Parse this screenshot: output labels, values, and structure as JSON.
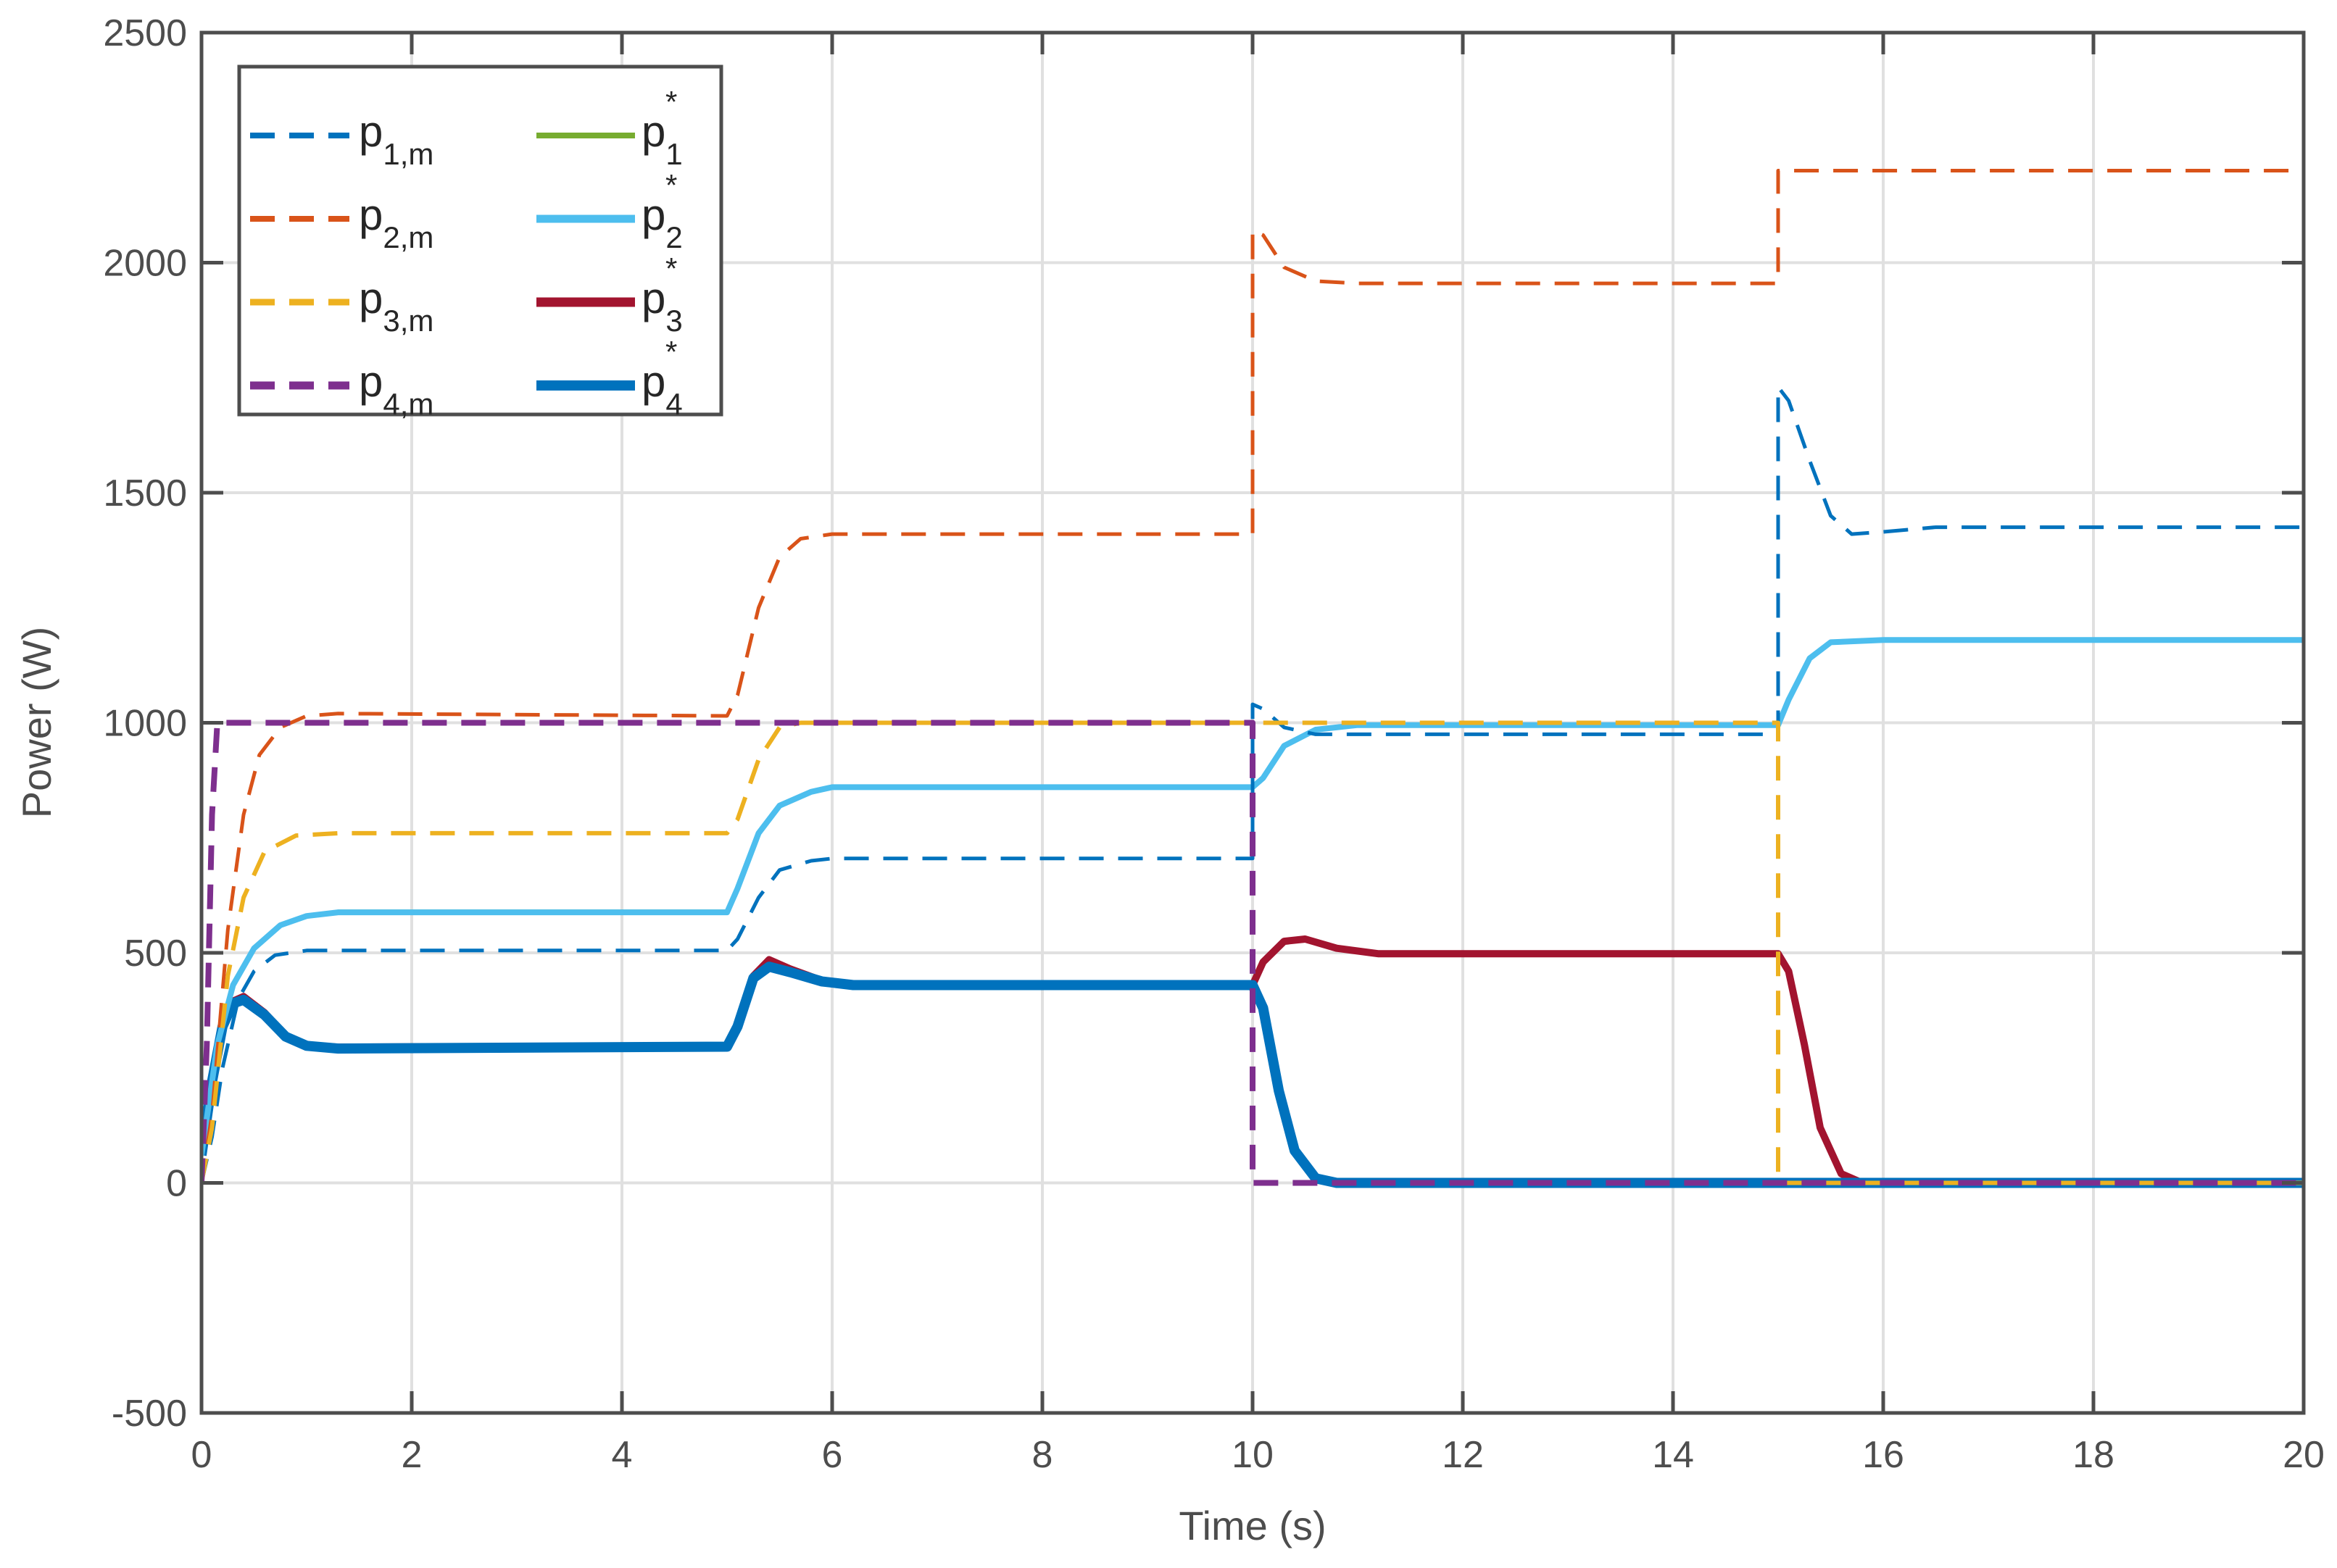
{
  "chart_data": {
    "type": "line",
    "title": "",
    "xlabel": "Time (s)",
    "ylabel": "Power (W)",
    "xlim": [
      0,
      20
    ],
    "ylim": [
      -500,
      2500
    ],
    "xticks": [
      0,
      2,
      4,
      6,
      8,
      10,
      12,
      14,
      16,
      18,
      20
    ],
    "yticks": [
      -500,
      0,
      500,
      1000,
      1500,
      2000,
      2500
    ],
    "grid": true,
    "legend_position": "upper-left",
    "legend_columns": 2,
    "series": [
      {
        "name": "p_{1,m}",
        "label_base": "p",
        "label_sub": "1,m",
        "label_sup": "",
        "style": "dashed",
        "color": "#0072BD",
        "width": 5,
        "points": [
          [
            0,
            0
          ],
          [
            0.1,
            100
          ],
          [
            0.2,
            250
          ],
          [
            0.35,
            400
          ],
          [
            0.5,
            460
          ],
          [
            0.7,
            495
          ],
          [
            1,
            505
          ],
          [
            5,
            505
          ],
          [
            5.1,
            530
          ],
          [
            5.3,
            620
          ],
          [
            5.5,
            680
          ],
          [
            5.8,
            700
          ],
          [
            6,
            705
          ],
          [
            10,
            705
          ],
          [
            10,
            1040
          ],
          [
            10.1,
            1030
          ],
          [
            10.3,
            990
          ],
          [
            10.6,
            975
          ],
          [
            11,
            975
          ],
          [
            15,
            975
          ],
          [
            15,
            1730
          ],
          [
            15.1,
            1700
          ],
          [
            15.3,
            1570
          ],
          [
            15.5,
            1450
          ],
          [
            15.7,
            1410
          ],
          [
            16,
            1415
          ],
          [
            16.5,
            1425
          ],
          [
            20,
            1425
          ]
        ]
      },
      {
        "name": "p_{2,m}",
        "label_base": "p",
        "label_sub": "2,m",
        "label_sup": "",
        "style": "dashed",
        "color": "#D95319",
        "width": 5,
        "points": [
          [
            0,
            0
          ],
          [
            0.1,
            150
          ],
          [
            0.25,
            550
          ],
          [
            0.4,
            800
          ],
          [
            0.55,
            930
          ],
          [
            0.75,
            990
          ],
          [
            1,
            1015
          ],
          [
            1.3,
            1020
          ],
          [
            5,
            1015
          ],
          [
            5.1,
            1060
          ],
          [
            5.3,
            1250
          ],
          [
            5.5,
            1360
          ],
          [
            5.7,
            1400
          ],
          [
            6,
            1410
          ],
          [
            10,
            1410
          ],
          [
            10,
            2070
          ],
          [
            10.1,
            2060
          ],
          [
            10.3,
            1990
          ],
          [
            10.6,
            1960
          ],
          [
            11,
            1955
          ],
          [
            15,
            1955
          ],
          [
            15,
            2200
          ],
          [
            20,
            2200
          ]
        ]
      },
      {
        "name": "p_{3,m}",
        "label_base": "p",
        "label_sub": "3,m",
        "label_sup": "",
        "style": "dashed",
        "color": "#EDB120",
        "width": 6,
        "points": [
          [
            0,
            0
          ],
          [
            0.1,
            120
          ],
          [
            0.25,
            450
          ],
          [
            0.4,
            620
          ],
          [
            0.6,
            720
          ],
          [
            0.9,
            755
          ],
          [
            1.3,
            760
          ],
          [
            5,
            760
          ],
          [
            5.1,
            790
          ],
          [
            5.3,
            920
          ],
          [
            5.5,
            990
          ],
          [
            5.7,
            1000
          ],
          [
            10,
            1000
          ],
          [
            15,
            1000
          ],
          [
            15,
            0
          ],
          [
            20,
            0
          ]
        ]
      },
      {
        "name": "p_{4,m}",
        "label_base": "p",
        "label_sub": "4,m",
        "label_sup": "",
        "style": "dashed",
        "color": "#7E2F8E",
        "width": 8,
        "points": [
          [
            0,
            0
          ],
          [
            0.05,
            300
          ],
          [
            0.1,
            800
          ],
          [
            0.15,
            1000
          ],
          [
            10,
            1000
          ],
          [
            10,
            0
          ],
          [
            20,
            0
          ]
        ]
      },
      {
        "name": "p_1^*",
        "label_base": "p",
        "label_sub": "1",
        "label_sup": "*",
        "style": "solid",
        "color": "#77AC30",
        "width": 5,
        "points": [
          [
            0,
            60
          ],
          [
            0.15,
            300
          ],
          [
            0.3,
            430
          ],
          [
            0.5,
            510
          ],
          [
            0.75,
            560
          ],
          [
            1,
            580
          ],
          [
            1.3,
            590
          ],
          [
            5,
            590
          ],
          [
            5.1,
            640
          ],
          [
            5.3,
            760
          ],
          [
            5.5,
            820
          ],
          [
            5.8,
            850
          ],
          [
            6,
            860
          ],
          [
            10,
            860
          ],
          [
            10.1,
            880
          ],
          [
            10.3,
            950
          ],
          [
            10.6,
            985
          ],
          [
            11,
            995
          ],
          [
            15,
            995
          ],
          [
            15.1,
            1050
          ],
          [
            15.3,
            1140
          ],
          [
            15.5,
            1175
          ],
          [
            16,
            1180
          ],
          [
            20,
            1180
          ]
        ]
      },
      {
        "name": "p_2^*",
        "label_base": "p",
        "label_sub": "2",
        "label_sup": "*",
        "style": "solid",
        "color": "#4DBEEE",
        "width": 8,
        "points": [
          [
            0,
            60
          ],
          [
            0.15,
            300
          ],
          [
            0.3,
            430
          ],
          [
            0.5,
            510
          ],
          [
            0.75,
            560
          ],
          [
            1,
            580
          ],
          [
            1.3,
            588
          ],
          [
            5,
            588
          ],
          [
            5.1,
            640
          ],
          [
            5.3,
            760
          ],
          [
            5.5,
            820
          ],
          [
            5.8,
            850
          ],
          [
            6,
            860
          ],
          [
            10,
            860
          ],
          [
            10.1,
            880
          ],
          [
            10.3,
            950
          ],
          [
            10.6,
            985
          ],
          [
            11,
            995
          ],
          [
            15,
            995
          ],
          [
            15.1,
            1050
          ],
          [
            15.3,
            1140
          ],
          [
            15.5,
            1175
          ],
          [
            16,
            1180
          ],
          [
            20,
            1180
          ]
        ]
      },
      {
        "name": "p_3^*",
        "label_base": "p",
        "label_sub": "3",
        "label_sup": "*",
        "style": "solid",
        "color": "#A2142F",
        "width": 10,
        "points": [
          [
            0,
            60
          ],
          [
            0.1,
            220
          ],
          [
            0.2,
            340
          ],
          [
            0.3,
            395
          ],
          [
            0.4,
            405
          ],
          [
            0.6,
            370
          ],
          [
            0.8,
            320
          ],
          [
            1,
            300
          ],
          [
            1.3,
            295
          ],
          [
            5,
            298
          ],
          [
            5.1,
            340
          ],
          [
            5.25,
            450
          ],
          [
            5.4,
            485
          ],
          [
            5.6,
            465
          ],
          [
            5.9,
            440
          ],
          [
            6.2,
            430
          ],
          [
            10,
            430
          ],
          [
            10.1,
            480
          ],
          [
            10.3,
            525
          ],
          [
            10.5,
            530
          ],
          [
            10.8,
            510
          ],
          [
            11.2,
            498
          ],
          [
            15,
            498
          ],
          [
            15.1,
            460
          ],
          [
            15.25,
            300
          ],
          [
            15.4,
            120
          ],
          [
            15.6,
            20
          ],
          [
            15.8,
            0
          ],
          [
            20,
            0
          ]
        ]
      },
      {
        "name": "p_4^*",
        "label_base": "p",
        "label_sub": "4",
        "label_sup": "*",
        "style": "solid",
        "color": "#0072BD",
        "width": 14,
        "points": [
          [
            0,
            60
          ],
          [
            0.1,
            220
          ],
          [
            0.2,
            340
          ],
          [
            0.3,
            390
          ],
          [
            0.4,
            398
          ],
          [
            0.6,
            365
          ],
          [
            0.8,
            318
          ],
          [
            1,
            298
          ],
          [
            1.3,
            292
          ],
          [
            5,
            296
          ],
          [
            5.1,
            340
          ],
          [
            5.25,
            445
          ],
          [
            5.4,
            470
          ],
          [
            5.6,
            458
          ],
          [
            5.9,
            438
          ],
          [
            6.2,
            430
          ],
          [
            10,
            430
          ],
          [
            10.1,
            380
          ],
          [
            10.25,
            200
          ],
          [
            10.4,
            70
          ],
          [
            10.6,
            10
          ],
          [
            10.8,
            0
          ],
          [
            20,
            0
          ]
        ]
      }
    ]
  }
}
